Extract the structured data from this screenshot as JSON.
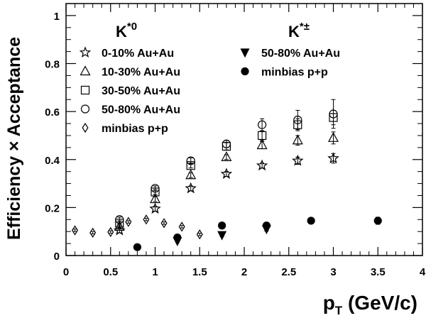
{
  "chart_data": {
    "type": "scatter",
    "xlabel": "p",
    "xlabel_sub": "T",
    "xlabel_unit": " (GeV/c)",
    "ylabel": "Efficiency × Acceptance",
    "xlim": [
      0,
      4
    ],
    "ylim": [
      0,
      1.05
    ],
    "x_ticks": [
      0,
      0.5,
      1,
      1.5,
      2,
      2.5,
      3,
      3.5,
      4
    ],
    "x_tick_labels": [
      "0",
      "0.5",
      "1",
      "1.5",
      "2",
      "2.5",
      "3",
      "3.5",
      "4"
    ],
    "y_ticks": [
      0,
      0.2,
      0.4,
      0.6,
      0.8,
      1.0
    ],
    "y_tick_labels": [
      "0",
      "0.2",
      "0.4",
      "0.6",
      "0.8",
      "1"
    ],
    "grid": false,
    "groups": [
      {
        "title": "K",
        "title_sup": "*0"
      },
      {
        "title": "K",
        "title_sup": "*±"
      }
    ],
    "series": [
      {
        "name": "0-10% Au+Au",
        "group": 0,
        "marker": "star",
        "x": [
          0.6,
          1.0,
          1.4,
          1.8,
          2.2,
          2.6,
          3.0
        ],
        "y": [
          0.105,
          0.195,
          0.28,
          0.34,
          0.375,
          0.395,
          0.405
        ],
        "err": [
          0.01,
          0.01,
          0.01,
          0.01,
          0.01,
          0.015,
          0.02
        ]
      },
      {
        "name": "10-30% Au+Au",
        "group": 0,
        "marker": "triangle-open",
        "x": [
          0.6,
          1.0,
          1.4,
          1.8,
          2.2,
          2.6,
          3.0
        ],
        "y": [
          0.12,
          0.235,
          0.335,
          0.41,
          0.46,
          0.48,
          0.49
        ],
        "err": [
          0.01,
          0.01,
          0.01,
          0.01,
          0.015,
          0.02,
          0.025
        ]
      },
      {
        "name": "30-50% Au+Au",
        "group": 0,
        "marker": "square-open",
        "x": [
          0.6,
          1.0,
          1.4,
          1.8,
          2.2,
          2.6,
          3.0
        ],
        "y": [
          0.135,
          0.265,
          0.375,
          0.455,
          0.5,
          0.545,
          0.575
        ],
        "err": [
          0.01,
          0.01,
          0.01,
          0.015,
          0.02,
          0.025,
          0.03
        ]
      },
      {
        "name": "50-80% Au+Au",
        "group": 0,
        "marker": "circle-open",
        "x": [
          0.6,
          1.0,
          1.4,
          1.8,
          2.2,
          2.6,
          3.0
        ],
        "y": [
          0.15,
          0.28,
          0.395,
          0.465,
          0.545,
          0.565,
          0.59
        ],
        "err": [
          0.01,
          0.01,
          0.012,
          0.015,
          0.025,
          0.04,
          0.06
        ]
      },
      {
        "name": "minbias p+p",
        "group": 0,
        "marker": "diamond-open",
        "x": [
          0.1,
          0.3,
          0.5,
          0.7,
          0.9,
          1.1,
          1.3,
          1.5
        ],
        "y": [
          0.105,
          0.095,
          0.098,
          0.14,
          0.15,
          0.135,
          0.12,
          0.088
        ],
        "err": [
          0.005,
          0.005,
          0.005,
          0.005,
          0.005,
          0.005,
          0.005,
          0.005
        ]
      },
      {
        "name": "50-80% Au+Au",
        "group": 1,
        "marker": "triangle-down-filled",
        "x": [
          1.25,
          1.75,
          2.25
        ],
        "y": [
          0.06,
          0.085,
          0.11
        ],
        "err": [
          0.006,
          0.006,
          0.008
        ]
      },
      {
        "name": "minbias p+p",
        "group": 1,
        "marker": "circle-filled",
        "x": [
          0.8,
          1.25,
          1.75,
          2.25,
          2.75,
          3.5
        ],
        "y": [
          0.035,
          0.075,
          0.125,
          0.125,
          0.145,
          0.145
        ],
        "err": [
          0.005,
          0.005,
          0.006,
          0.008,
          0.008,
          0.015
        ]
      }
    ]
  }
}
